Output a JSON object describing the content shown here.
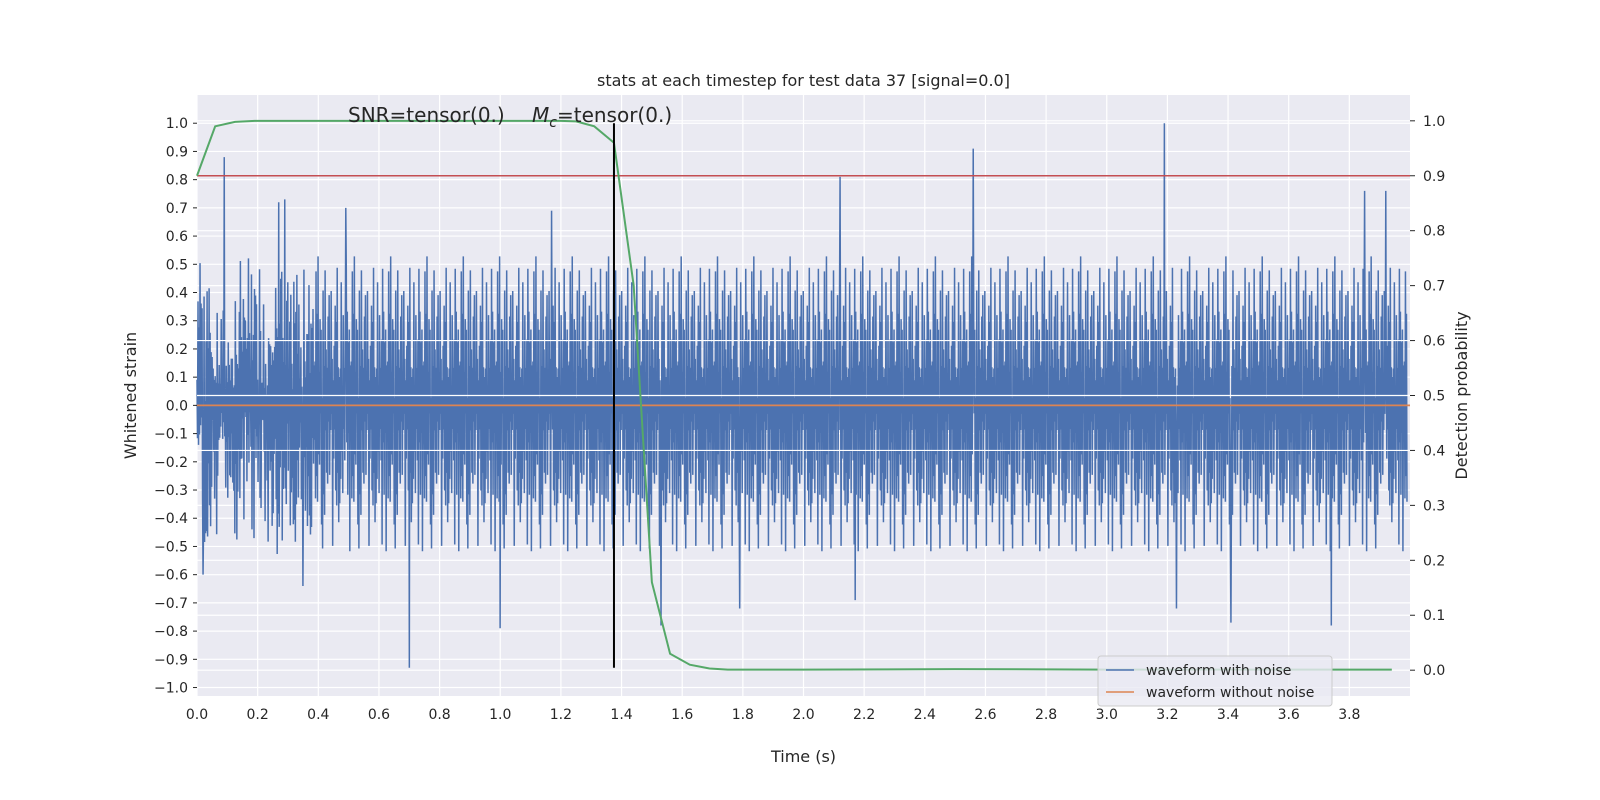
{
  "chart_data": {
    "type": "line",
    "title": "stats at each timestep for test data 37 [signal=0.0]",
    "xlabel": "Time (s)",
    "ylabel_left": "Whitened strain",
    "ylabel_right": "Detection probability",
    "xlim": [
      0.0,
      4.0
    ],
    "ylim_left": [
      -1.03,
      1.1
    ],
    "ylim_right": [
      -0.047,
      1.047
    ],
    "x_ticks": [
      0.0,
      0.2,
      0.4,
      0.6,
      0.8,
      1.0,
      1.2,
      1.4,
      1.6,
      1.8,
      2.0,
      2.2,
      2.4,
      2.6,
      2.8,
      3.0,
      3.2,
      3.4,
      3.6,
      3.8
    ],
    "x_tick_labels": [
      "0.0",
      "0.2",
      "0.4",
      "0.6",
      "0.8",
      "1.0",
      "1.2",
      "1.4",
      "1.6",
      "1.8",
      "2.0",
      "2.2",
      "2.4",
      "2.6",
      "2.8",
      "3.0",
      "3.2",
      "3.4",
      "3.6",
      "3.8"
    ],
    "y_left_ticks": [
      -1.0,
      -0.9,
      -0.8,
      -0.7,
      -0.6,
      -0.5,
      -0.4,
      -0.3,
      -0.2,
      -0.1,
      0.0,
      0.1,
      0.2,
      0.3,
      0.4,
      0.5,
      0.6,
      0.7,
      0.8,
      0.9,
      1.0
    ],
    "y_left_tick_labels": [
      "−1.0",
      "−0.9",
      "−0.8",
      "−0.7",
      "−0.6",
      "−0.5",
      "−0.4",
      "−0.3",
      "−0.2",
      "−0.1",
      "0.0",
      "0.1",
      "0.2",
      "0.3",
      "0.4",
      "0.5",
      "0.6",
      "0.7",
      "0.8",
      "0.9",
      "1.0"
    ],
    "y_right_ticks": [
      0.0,
      0.1,
      0.2,
      0.3,
      0.4,
      0.5,
      0.6,
      0.7,
      0.8,
      0.9,
      1.0
    ],
    "y_right_tick_labels": [
      "0.0",
      "0.1",
      "0.2",
      "0.3",
      "0.4",
      "0.5",
      "0.6",
      "0.7",
      "0.8",
      "0.9",
      "1.0"
    ],
    "grid": true,
    "legend_position": "lower-right",
    "annotations": {
      "snr": "SNR=tensor(0.)",
      "mc_symbol": "M",
      "mc_subscript": "c",
      "mc_value": "=tensor(0.)"
    },
    "series": [
      {
        "name": "waveform with noise",
        "axis": "left",
        "color": "#4c72b0",
        "description_values": "dense noise, mostly within ±0.5",
        "peaks": [
          [
            0.09,
            0.88
          ],
          [
            0.27,
            0.72
          ],
          [
            0.29,
            0.73
          ],
          [
            0.49,
            0.7
          ],
          [
            1.17,
            0.69
          ],
          [
            2.12,
            0.81
          ],
          [
            2.56,
            0.91
          ],
          [
            3.19,
            1.0
          ],
          [
            3.85,
            0.76
          ],
          [
            3.92,
            0.76
          ]
        ],
        "troughs": [
          [
            0.02,
            -0.6
          ],
          [
            0.35,
            -0.64
          ],
          [
            0.7,
            -0.93
          ],
          [
            1.0,
            -0.79
          ],
          [
            1.53,
            -0.78
          ],
          [
            1.79,
            -0.72
          ],
          [
            2.17,
            -0.69
          ],
          [
            3.23,
            -0.72
          ],
          [
            3.41,
            -0.77
          ],
          [
            3.74,
            -0.78
          ]
        ]
      },
      {
        "name": "waveform without noise",
        "axis": "left",
        "color": "#dd8452",
        "x": [
          0.0,
          4.0
        ],
        "y": [
          0.0,
          0.0
        ]
      },
      {
        "name": "",
        "axis": "right",
        "color": "#55a868",
        "x": [
          0.0,
          0.06,
          0.125,
          0.19,
          0.25,
          0.5,
          0.75,
          1.0,
          1.2,
          1.25,
          1.31,
          1.375,
          1.44,
          1.5,
          1.56,
          1.625,
          1.69,
          1.75,
          2.0,
          2.5,
          3.0,
          3.5,
          3.94
        ],
        "y": [
          0.9,
          0.99,
          0.998,
          1.0,
          1.0,
          1.0,
          1.0,
          1.0,
          1.0,
          0.999,
          0.99,
          0.96,
          0.7,
          0.16,
          0.03,
          0.01,
          0.003,
          0.001,
          0.001,
          0.002,
          0.001,
          0.001,
          0.001
        ]
      }
    ],
    "threshold_line": {
      "axis": "right",
      "y": 0.9,
      "color": "#c44e52"
    },
    "event_line": {
      "x": 1.375,
      "y_range": [
        -0.93,
        1.0
      ],
      "color": "#000000"
    }
  }
}
